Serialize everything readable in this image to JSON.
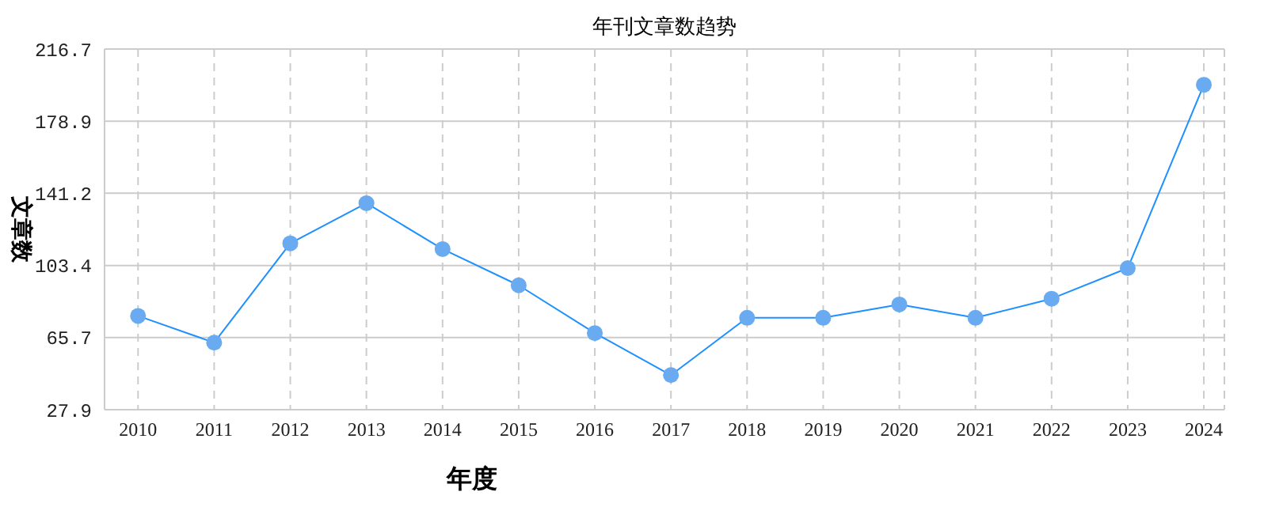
{
  "chart_data": {
    "type": "line",
    "title": "年刊文章数趋势",
    "xlabel": "年度",
    "ylabel": "文章数",
    "categories": [
      "2010",
      "2011",
      "2012",
      "2013",
      "2014",
      "2015",
      "2016",
      "2017",
      "2018",
      "2019",
      "2020",
      "2021",
      "2022",
      "2023",
      "2024"
    ],
    "series": [
      {
        "color": "#1e90ff",
        "values": [
          77,
          63,
          115,
          136,
          112,
          93,
          68,
          46,
          76,
          76,
          83,
          76,
          86,
          102,
          198
        ]
      }
    ],
    "ylim": [
      27.9,
      216.7
    ],
    "yticks": [
      27.9,
      65.7,
      103.4,
      141.2,
      178.9,
      216.7
    ],
    "grid": true,
    "marker": "circle",
    "line_style": "solid",
    "legend": false
  }
}
